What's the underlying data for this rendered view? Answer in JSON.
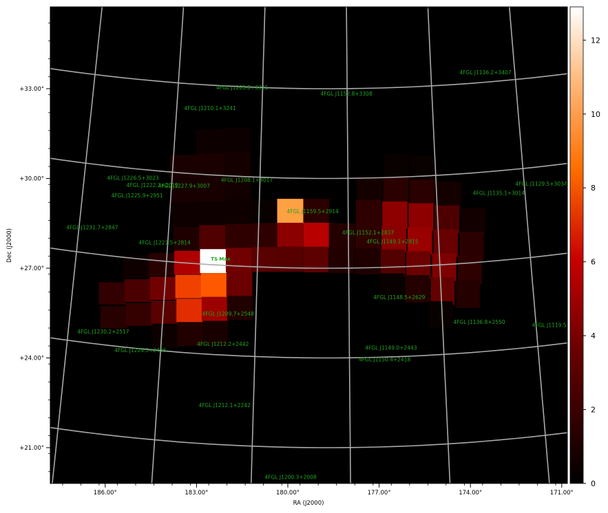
{
  "chart_data": {
    "type": "heatmap",
    "xlabel": "RA (J2000)",
    "ylabel": "Dec (J2000)",
    "colormap": "gist_heat",
    "colorbar": {
      "min": 0,
      "max": 12.9,
      "ticks": [
        "0",
        "2",
        "4",
        "6",
        "8",
        "10",
        "12"
      ]
    },
    "ra_range": [
      188,
      171
    ],
    "dec_range": [
      19.5,
      35.5
    ],
    "grid": true,
    "grid_color": "#aaaaaa",
    "label_color": "#1fa51f",
    "x_ticks": [
      "186.00°",
      "183.00°",
      "180.00°",
      "177.00°",
      "174.00°",
      "171.00°"
    ],
    "y_ticks": [
      "+33.00°",
      "+30.00°",
      "+27.00°",
      "+24.00°",
      "+21.00°"
    ],
    "cell_size_deg": 0.84,
    "pixels": [
      {
        "ra": 182.44,
        "dec": 31.3,
        "v": 0.4
      },
      {
        "ra": 181.6,
        "dec": 31.3,
        "v": 0.4
      },
      {
        "ra": 183.28,
        "dec": 30.5,
        "v": 0.9
      },
      {
        "ra": 182.44,
        "dec": 30.5,
        "v": 0.9
      },
      {
        "ra": 181.6,
        "dec": 30.5,
        "v": 0.7
      },
      {
        "ra": 176.56,
        "dec": 30.5,
        "v": 0.3
      },
      {
        "ra": 175.72,
        "dec": 30.5,
        "v": 0.3
      },
      {
        "ra": 183.28,
        "dec": 29.7,
        "v": 0.8
      },
      {
        "ra": 182.44,
        "dec": 29.7,
        "v": 0.8
      },
      {
        "ra": 181.6,
        "dec": 29.7,
        "v": 0.6
      },
      {
        "ra": 177.4,
        "dec": 29.7,
        "v": 0.7
      },
      {
        "ra": 176.56,
        "dec": 29.7,
        "v": 1.4
      },
      {
        "ra": 175.72,
        "dec": 29.7,
        "v": 1.4
      },
      {
        "ra": 174.88,
        "dec": 29.7,
        "v": 0.7
      },
      {
        "ra": 183.28,
        "dec": 28.9,
        "v": 0.5
      },
      {
        "ra": 182.44,
        "dec": 28.9,
        "v": 0.5
      },
      {
        "ra": 181.6,
        "dec": 28.9,
        "v": 0.5
      },
      {
        "ra": 180.76,
        "dec": 28.9,
        "v": 0.3
      },
      {
        "ra": 179.92,
        "dec": 28.9,
        "v": 10.5
      },
      {
        "ra": 179.08,
        "dec": 28.9,
        "v": 1.4
      },
      {
        "ra": 177.4,
        "dec": 28.9,
        "v": 1.6
      },
      {
        "ra": 176.56,
        "dec": 28.9,
        "v": 4.8
      },
      {
        "ra": 175.72,
        "dec": 28.9,
        "v": 4.8
      },
      {
        "ra": 174.88,
        "dec": 28.9,
        "v": 2.6
      },
      {
        "ra": 174.04,
        "dec": 28.9,
        "v": 0.6
      },
      {
        "ra": 183.28,
        "dec": 28.1,
        "v": 1.0
      },
      {
        "ra": 182.44,
        "dec": 28.1,
        "v": 2.7
      },
      {
        "ra": 181.6,
        "dec": 28.1,
        "v": 1.6
      },
      {
        "ra": 180.76,
        "dec": 28.1,
        "v": 1.6
      },
      {
        "ra": 179.92,
        "dec": 28.1,
        "v": 4.7
      },
      {
        "ra": 179.08,
        "dec": 28.1,
        "v": 6.2
      },
      {
        "ra": 178.24,
        "dec": 28.1,
        "v": 1.2
      },
      {
        "ra": 177.4,
        "dec": 28.1,
        "v": 1.6
      },
      {
        "ra": 176.56,
        "dec": 28.1,
        "v": 4.6
      },
      {
        "ra": 175.72,
        "dec": 28.1,
        "v": 5.2
      },
      {
        "ra": 174.88,
        "dec": 28.1,
        "v": 3.5
      },
      {
        "ra": 174.04,
        "dec": 28.1,
        "v": 1.4
      },
      {
        "ra": 184.96,
        "dec": 27.3,
        "v": 0.5
      },
      {
        "ra": 184.12,
        "dec": 27.3,
        "v": 1.3
      },
      {
        "ra": 183.28,
        "dec": 27.3,
        "v": 5.9
      },
      {
        "ra": 182.44,
        "dec": 27.3,
        "v": 12.9
      },
      {
        "ra": 181.6,
        "dec": 27.3,
        "v": 3.8
      },
      {
        "ra": 180.76,
        "dec": 27.3,
        "v": 3.0
      },
      {
        "ra": 179.92,
        "dec": 27.3,
        "v": 2.9
      },
      {
        "ra": 179.08,
        "dec": 27.3,
        "v": 3.1
      },
      {
        "ra": 178.24,
        "dec": 27.3,
        "v": 1.1
      },
      {
        "ra": 177.4,
        "dec": 27.3,
        "v": 1.0
      },
      {
        "ra": 176.56,
        "dec": 27.3,
        "v": 2.8
      },
      {
        "ra": 175.72,
        "dec": 27.3,
        "v": 3.6
      },
      {
        "ra": 174.88,
        "dec": 27.3,
        "v": 4.2
      },
      {
        "ra": 174.04,
        "dec": 27.3,
        "v": 1.6
      },
      {
        "ra": 185.8,
        "dec": 26.5,
        "v": 1.7
      },
      {
        "ra": 184.96,
        "dec": 26.5,
        "v": 2.5
      },
      {
        "ra": 184.12,
        "dec": 26.5,
        "v": 3.8
      },
      {
        "ra": 183.28,
        "dec": 26.5,
        "v": 8.1
      },
      {
        "ra": 182.44,
        "dec": 26.5,
        "v": 8.7
      },
      {
        "ra": 181.6,
        "dec": 26.5,
        "v": 3.6
      },
      {
        "ra": 176.56,
        "dec": 26.5,
        "v": 0.3
      },
      {
        "ra": 175.72,
        "dec": 26.5,
        "v": 1.2
      },
      {
        "ra": 174.88,
        "dec": 26.5,
        "v": 3.4
      },
      {
        "ra": 174.04,
        "dec": 26.5,
        "v": 1.2
      },
      {
        "ra": 185.8,
        "dec": 25.7,
        "v": 1.3
      },
      {
        "ra": 184.96,
        "dec": 25.7,
        "v": 1.8
      },
      {
        "ra": 184.12,
        "dec": 25.7,
        "v": 3.0
      },
      {
        "ra": 183.28,
        "dec": 25.7,
        "v": 7.6
      },
      {
        "ra": 182.44,
        "dec": 25.7,
        "v": 5.3
      },
      {
        "ra": 181.6,
        "dec": 25.7,
        "v": 1.1
      },
      {
        "ra": 174.88,
        "dec": 25.7,
        "v": 0.3
      },
      {
        "ra": 184.12,
        "dec": 24.9,
        "v": 0.5
      },
      {
        "ra": 183.28,
        "dec": 24.9,
        "v": 1.1
      },
      {
        "ra": 182.44,
        "dec": 24.9,
        "v": 0.8
      }
    ],
    "sources": [
      {
        "name": "4FGL J1136.2+3407",
        "ra": 174.0,
        "dec": 33.85
      },
      {
        "name": "4FGL J1205.8+3321",
        "ra": 181.4,
        "dec": 33.0
      },
      {
        "name": "4FGL J1152.8+3308",
        "ra": 178.2,
        "dec": 32.8
      },
      {
        "name": "4FGL J1210.1+3241",
        "ra": 182.4,
        "dec": 32.35
      },
      {
        "name": "4FGL J1226.5+3023",
        "ra": 184.9,
        "dec": 30.2
      },
      {
        "name": "4FGL J1129.5+3034",
        "ra": 172.0,
        "dec": 30.4
      },
      {
        "name": "4FGL J1222.3+2019",
        "ra": 184.3,
        "dec": 29.9
      },
      {
        "name": "4FGL J1227.9+3007",
        "ra": 183.3,
        "dec": 29.8
      },
      {
        "name": "4FGL J1208.1+3017",
        "ra": 181.3,
        "dec": 29.9
      },
      {
        "name": "4FGL J1135.1+3014",
        "ra": 173.3,
        "dec": 29.9
      },
      {
        "name": "4FGL J1225.9+2951",
        "ra": 184.8,
        "dec": 29.6
      },
      {
        "name": "4FGL J1159.5+2914",
        "ra": 179.2,
        "dec": 28.85
      },
      {
        "name": "4FGL J1231.7+2847",
        "ra": 186.3,
        "dec": 28.7
      },
      {
        "name": "4FGL J1152.1+2837",
        "ra": 177.4,
        "dec": 28.2
      },
      {
        "name": "4FGL J1149.1+2815",
        "ra": 176.6,
        "dec": 27.95
      },
      {
        "name": "4FGL J1221.5+2814",
        "ra": 184.0,
        "dec": 27.95
      },
      {
        "name": "TS Max",
        "ra": 182.2,
        "dec": 27.3
      },
      {
        "name": "4FGL J1148.5+2629",
        "ra": 176.3,
        "dec": 26.1
      },
      {
        "name": "4FGL J1136.8+2550",
        "ra": 173.6,
        "dec": 25.55
      },
      {
        "name": "4FGL J1119.5+2557",
        "ra": 171.0,
        "dec": 25.85
      },
      {
        "name": "4FGL J1209.7+2548",
        "ra": 182.0,
        "dec": 25.45
      },
      {
        "name": "4FGL J1230.2+2517",
        "ra": 186.2,
        "dec": 25.2
      },
      {
        "name": "4FGL J1224.5+2436",
        "ra": 185.0,
        "dec": 24.45
      },
      {
        "name": "4FGL J1212.2+2442",
        "ra": 182.2,
        "dec": 24.45
      },
      {
        "name": "4FGL J1149.0+2443",
        "ra": 176.5,
        "dec": 24.4
      },
      {
        "name": "4FGL J1150.4+2418",
        "ra": 176.7,
        "dec": 24.0
      },
      {
        "name": "4FGL J1212.1+2242",
        "ra": 182.2,
        "dec": 22.4
      },
      {
        "name": "4FGL J1200.3+2008",
        "ra": 179.9,
        "dec": 19.95
      }
    ]
  }
}
